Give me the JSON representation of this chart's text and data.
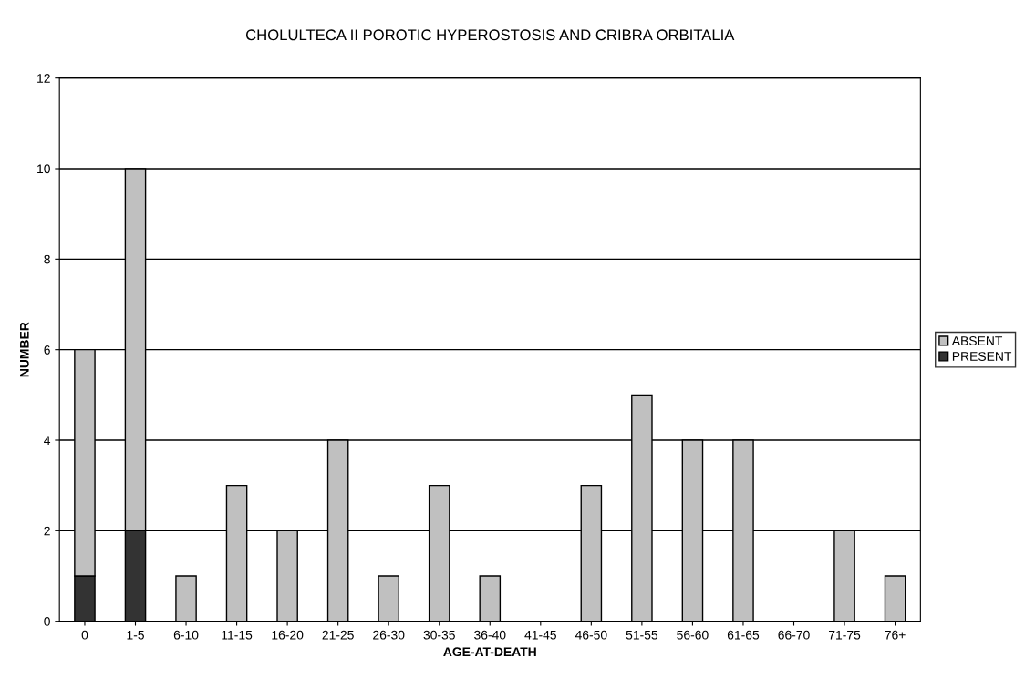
{
  "chart_data": {
    "type": "bar",
    "title": "CHOLULTECA II POROTIC HYPEROSTOSIS AND CRIBRA ORBITALIA",
    "xlabel": "AGE-AT-DEATH",
    "ylabel": "NUMBER",
    "categories": [
      "0",
      "1-5",
      "6-10",
      "11-15",
      "16-20",
      "21-25",
      "26-30",
      "30-35",
      "36-40",
      "41-45",
      "46-50",
      "51-55",
      "56-60",
      "61-65",
      "66-70",
      "71-75",
      "76+"
    ],
    "stacked": true,
    "series": [
      {
        "name": "PRESENT",
        "color": "#333333",
        "values": [
          1,
          2,
          0,
          0,
          0,
          0,
          0,
          0,
          0,
          null,
          0,
          0,
          0,
          0,
          null,
          0,
          0
        ]
      },
      {
        "name": "ABSENT",
        "color": "#c0c0c0",
        "values": [
          5,
          8,
          1,
          3,
          2,
          4,
          1,
          3,
          1,
          null,
          3,
          5,
          4,
          4,
          null,
          2,
          1
        ]
      }
    ],
    "ylim": [
      0,
      12
    ],
    "yticks": [
      0,
      2,
      4,
      6,
      8,
      10,
      12
    ],
    "grid": "y",
    "legend": "right"
  }
}
